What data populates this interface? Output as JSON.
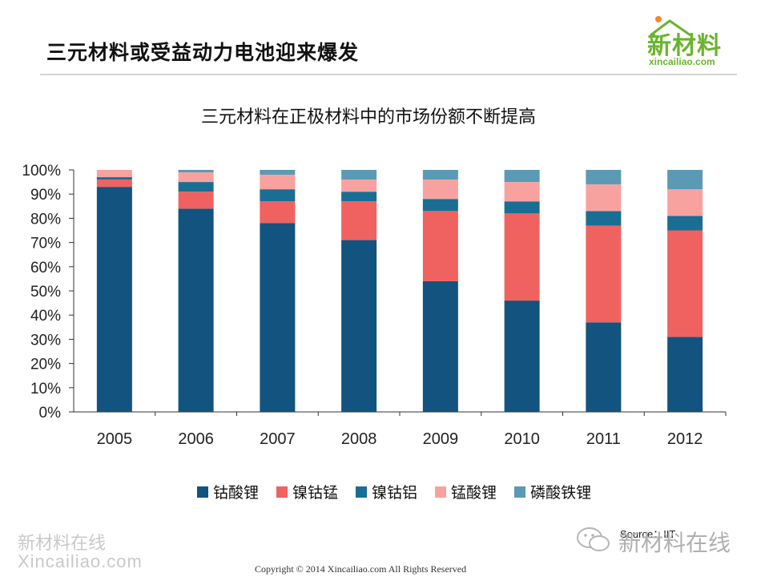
{
  "slide": {
    "title": "三元材料或受益动力电池迎来爆发"
  },
  "logo": {
    "main": "新材料",
    "sub": "xincailiao.com",
    "color": "#6ab42d"
  },
  "chart_data": {
    "type": "bar",
    "stacked": true,
    "title": "三元材料在正极材料中的市场份额不断提高",
    "categories": [
      "2005",
      "2006",
      "2007",
      "2008",
      "2009",
      "2010",
      "2011",
      "2012"
    ],
    "yticks": [
      "0%",
      "10%",
      "20%",
      "30%",
      "40%",
      "50%",
      "60%",
      "70%",
      "80%",
      "90%",
      "100%"
    ],
    "ylim": [
      0,
      100
    ],
    "legend_position": "bottom",
    "series": [
      {
        "name": "钴酸锂",
        "color": "#13537f",
        "values": [
          93,
          84,
          78,
          71,
          54,
          46,
          37,
          31
        ]
      },
      {
        "name": "镍钴锰",
        "color": "#f0625f",
        "values": [
          3,
          7,
          9,
          16,
          29,
          36,
          40,
          44
        ]
      },
      {
        "name": "镍钴铝",
        "color": "#1a6e94",
        "values": [
          1,
          4,
          5,
          4,
          5,
          5,
          6,
          6
        ]
      },
      {
        "name": "锰酸锂",
        "color": "#f8a2a0",
        "values": [
          3,
          4,
          6,
          5,
          8,
          8,
          11,
          11
        ]
      },
      {
        "name": "磷酸铁锂",
        "color": "#5b9ab5",
        "values": [
          0,
          1,
          2,
          4,
          4,
          5,
          6,
          8
        ]
      }
    ]
  },
  "source": "Source：IIT",
  "watermarks": {
    "left_line1": "新材料在线",
    "left_line2": "Xincailiao.com",
    "right": "新材料在线"
  },
  "footer": {
    "copyright": "Copyright © 2014   Xincailiao.com    All Rights Reserved"
  }
}
